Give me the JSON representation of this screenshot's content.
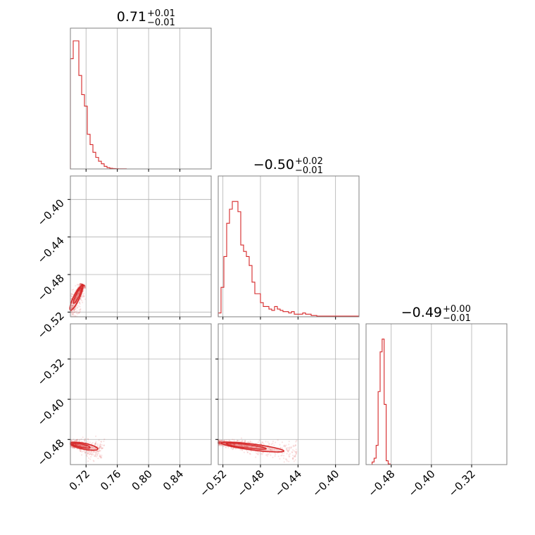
{
  "chart_data": {
    "type": "corner",
    "color": "#d62728",
    "grid": true,
    "titles": [
      {
        "main": "0.71",
        "plus": "+0.01",
        "minus": "−0.01"
      },
      {
        "main": "−0.50",
        "plus": "+0.02",
        "minus": "−0.01"
      },
      {
        "main": "−0.49",
        "plus": "+0.00",
        "minus": "−0.01"
      }
    ],
    "params": [
      {
        "range": [
          0.7,
          0.88
        ],
        "ticks": [
          0.72,
          0.76,
          0.8,
          0.84
        ],
        "tick_labels": [
          "0.72",
          "0.76",
          "0.80",
          "0.84"
        ]
      },
      {
        "range": [
          -0.525,
          -0.375
        ],
        "ticks": [
          -0.52,
          -0.48,
          -0.44,
          -0.4
        ],
        "tick_labels": [
          "−0.52",
          "−0.48",
          "−0.44",
          "−0.40"
        ]
      },
      {
        "range": [
          -0.53,
          -0.25
        ],
        "ticks": [
          -0.48,
          -0.4,
          -0.32
        ],
        "tick_labels": [
          "−0.48",
          "−0.40",
          "−0.32"
        ]
      }
    ],
    "histograms": [
      {
        "param": 0,
        "bin_start": 0.7,
        "bin_width": 0.0036,
        "counts": [
          0.86,
          1,
          1,
          0.73,
          0.58,
          0.49,
          0.27,
          0.19,
          0.13,
          0.09,
          0.06,
          0.04,
          0.02,
          0.01,
          0.005,
          0.003,
          0.002,
          0.001,
          0.001,
          0.001
        ]
      },
      {
        "param": 1,
        "bin_start": -0.525,
        "bin_width": 0.003,
        "counts": [
          0.03,
          0.23,
          0.47,
          0.73,
          0.84,
          0.9,
          0.9,
          0.82,
          0.56,
          0.51,
          0.47,
          0.4,
          0.27,
          0.18,
          0.18,
          0.11,
          0.08,
          0.08,
          0.06,
          0.05,
          0.08,
          0.06,
          0.05,
          0.04,
          0.04,
          0.03,
          0.04,
          0.02,
          0.02,
          0.02,
          0.03,
          0.02,
          0.02,
          0.01,
          0.01,
          0.005,
          0.005,
          0.005,
          0.005,
          0.005,
          0.005,
          0.005,
          0.005,
          0.005,
          0.005,
          0.005,
          0.005,
          0.005,
          0.005,
          0.005
        ]
      },
      {
        "param": 2,
        "bin_start": -0.53,
        "bin_width": 0.004,
        "counts": [
          0,
          0,
          0,
          0.02,
          0.05,
          0.15,
          0.57,
          0.88,
          0.98,
          0.47,
          0.03,
          0.005,
          0,
          0,
          0,
          0,
          0,
          0,
          0,
          0
        ]
      }
    ],
    "panels_2d": [
      {
        "x_param": 0,
        "y_param": 1,
        "center": [
          0.709,
          -0.508
        ],
        "major_axis": [
          0.715,
          -0.492,
          0.7,
          -0.518
        ]
      },
      {
        "x_param": 0,
        "y_param": 2,
        "center": [
          0.713,
          -0.493
        ],
        "major_axis": [
          0.7,
          -0.488,
          0.735,
          -0.499
        ]
      },
      {
        "x_param": 1,
        "y_param": 2,
        "center": [
          -0.5,
          -0.493
        ],
        "major_axis": [
          -0.522,
          -0.487,
          -0.455,
          -0.503
        ]
      }
    ]
  }
}
